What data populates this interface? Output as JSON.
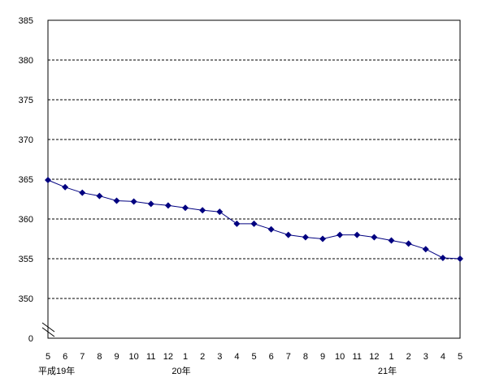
{
  "chart_data": {
    "type": "line",
    "title": "",
    "xlabel": "",
    "ylabel": "",
    "y_ticks": [
      "385",
      "380",
      "375",
      "370",
      "365",
      "360",
      "355",
      "350",
      "0"
    ],
    "y_axis_broken": true,
    "ylim": [
      345,
      385
    ],
    "grid": "horizontal-dashed",
    "categories": [
      "5",
      "6",
      "7",
      "8",
      "9",
      "10",
      "11",
      "12",
      "1",
      "2",
      "3",
      "4",
      "5",
      "6",
      "7",
      "8",
      "9",
      "10",
      "11",
      "12",
      "1",
      "2",
      "3",
      "4",
      "5"
    ],
    "year_labels": [
      "平成19年",
      "20年",
      "21年"
    ],
    "series": [
      {
        "color": "#000080",
        "marker": "diamond",
        "values": [
          364.9,
          364.0,
          363.3,
          362.9,
          362.3,
          362.2,
          361.9,
          361.7,
          361.4,
          361.1,
          360.9,
          359.4,
          359.4,
          358.7,
          358.0,
          357.7,
          357.5,
          358.0,
          358.0,
          357.7,
          357.3,
          356.9,
          356.2,
          355.1,
          355.0
        ]
      }
    ]
  }
}
